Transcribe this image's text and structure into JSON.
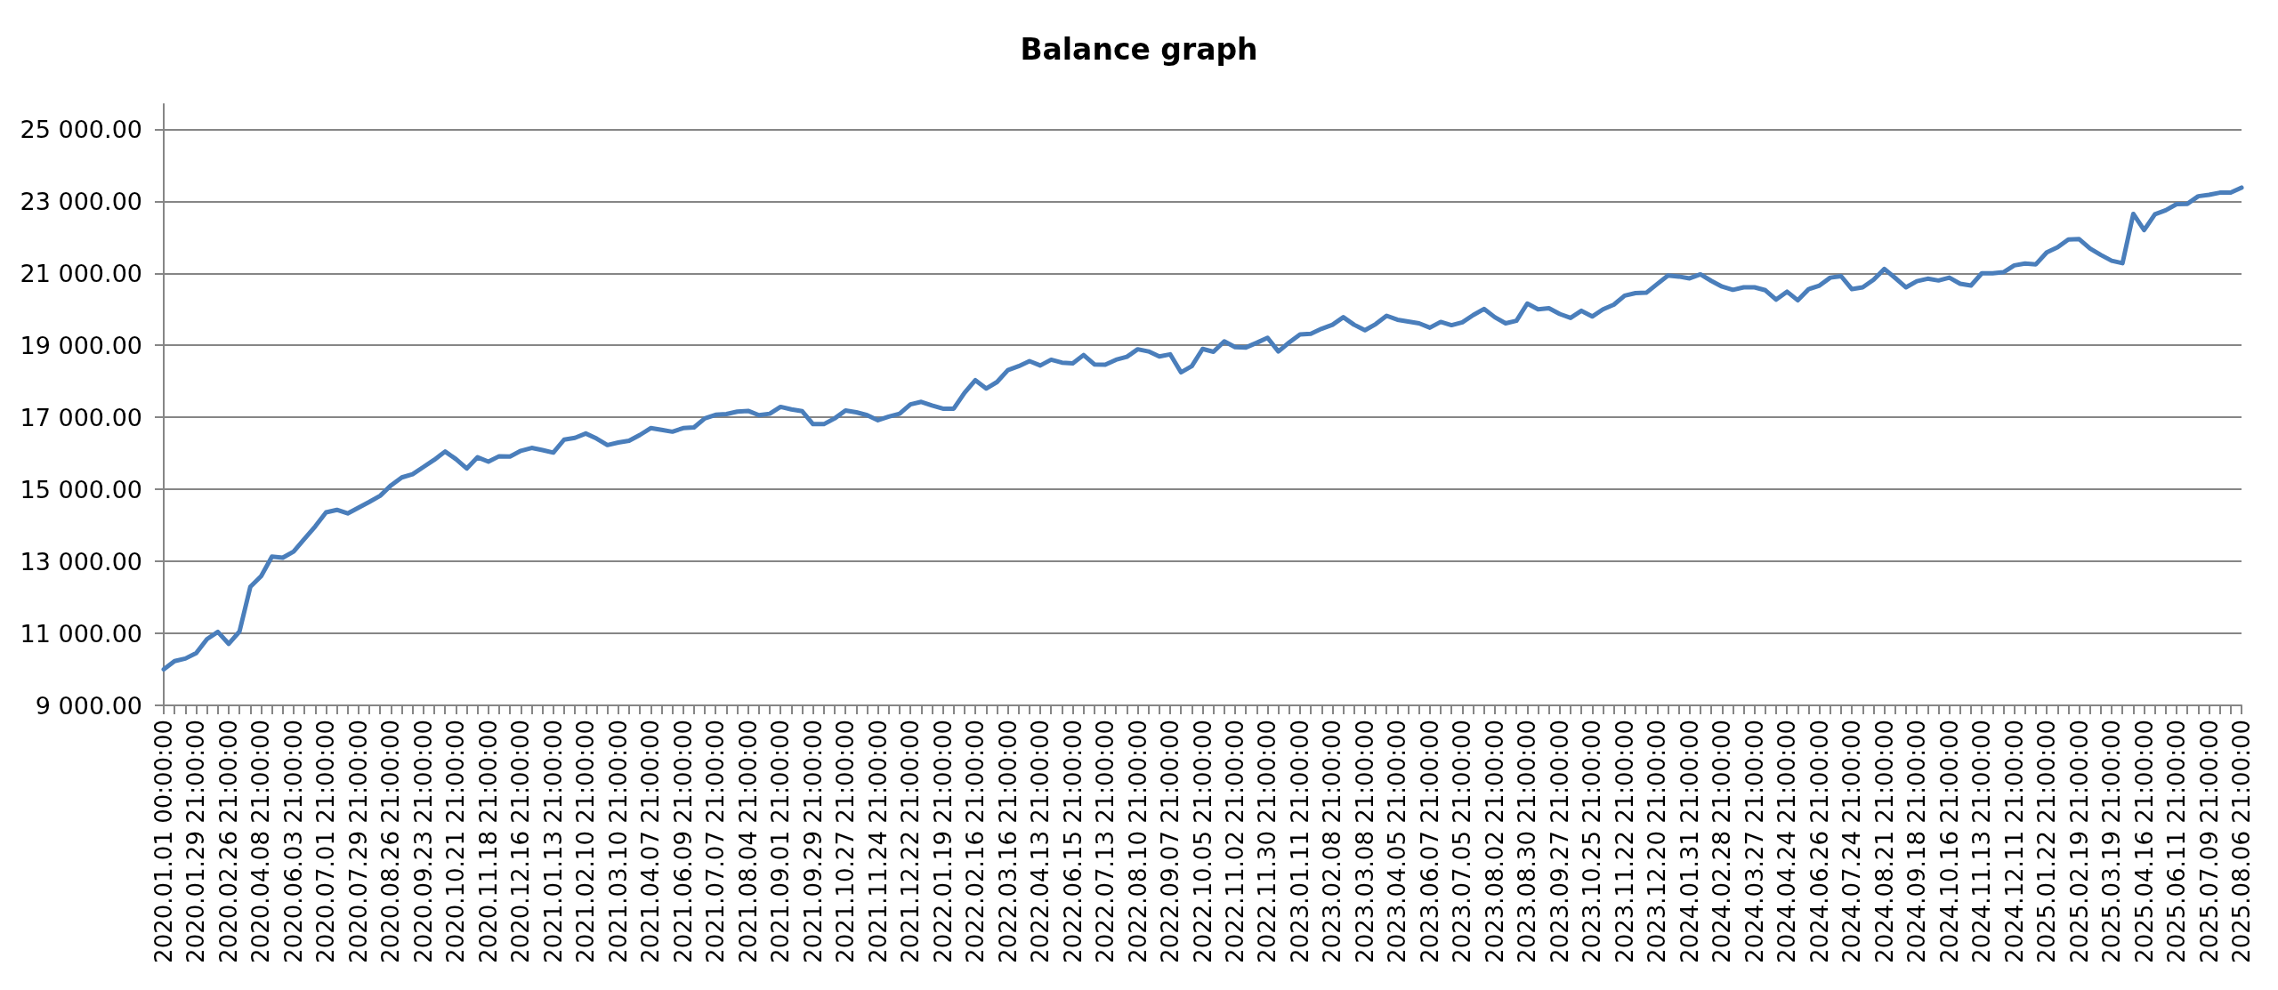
{
  "chart_data": {
    "type": "line",
    "title": "Balance graph",
    "categories": [
      "2020.01.01 00:00:00",
      null,
      null,
      "2020.01.29 21:00:00",
      null,
      null,
      "2020.02.26 21:00:00",
      null,
      null,
      "2020.04.08 21:00:00",
      null,
      null,
      "2020.06.03 21:00:00",
      null,
      null,
      "2020.07.01 21:00:00",
      null,
      null,
      "2020.07.29 21:00:00",
      null,
      null,
      "2020.08.26 21:00:00",
      null,
      null,
      "2020.09.23 21:00:00",
      null,
      null,
      "2020.10.21 21:00:00",
      null,
      null,
      "2020.11.18 21:00:00",
      null,
      null,
      "2020.12.16 21:00:00",
      null,
      null,
      "2021.01.13 21:00:00",
      null,
      null,
      "2021.02.10 21:00:00",
      null,
      null,
      "2021.03.10 21:00:00",
      null,
      null,
      "2021.04.07 21:00:00",
      null,
      null,
      "2021.06.09 21:00:00",
      null,
      null,
      "2021.07.07 21:00:00",
      null,
      null,
      "2021.08.04 21:00:00",
      null,
      null,
      "2021.09.01 21:00:00",
      null,
      null,
      "2021.09.29 21:00:00",
      null,
      null,
      "2021.10.27 21:00:00",
      null,
      null,
      "2021.11.24 21:00:00",
      null,
      null,
      "2021.12.22 21:00:00",
      null,
      null,
      "2022.01.19 21:00:00",
      null,
      null,
      "2022.02.16 21:00:00",
      null,
      null,
      "2022.03.16 21:00:00",
      null,
      null,
      "2022.04.13 21:00:00",
      null,
      null,
      "2022.06.15 21:00:00",
      null,
      null,
      "2022.07.13 21:00:00",
      null,
      null,
      "2022.08.10 21:00:00",
      null,
      null,
      "2022.09.07 21:00:00",
      null,
      null,
      "2022.10.05 21:00:00",
      null,
      null,
      "2022.11.02 21:00:00",
      null,
      null,
      "2022.11.30 21:00:00",
      null,
      null,
      "2023.01.11 21:00:00",
      null,
      null,
      "2023.02.08 21:00:00",
      null,
      null,
      "2023.03.08 21:00:00",
      null,
      null,
      "2023.04.05 21:00:00",
      null,
      null,
      "2023.06.07 21:00:00",
      null,
      null,
      "2023.07.05 21:00:00",
      null,
      null,
      "2023.08.02 21:00:00",
      null,
      null,
      "2023.08.30 21:00:00",
      null,
      null,
      "2023.09.27 21:00:00",
      null,
      null,
      "2023.10.25 21:00:00",
      null,
      null,
      "2023.11.22 21:00:00",
      null,
      null,
      "2023.12.20 21:00:00",
      null,
      null,
      "2024.01.31 21:00:00",
      null,
      null,
      "2024.02.28 21:00:00",
      null,
      null,
      "2024.03.27 21:00:00",
      null,
      null,
      "2024.04.24 21:00:00",
      null,
      null,
      "2024.06.26 21:00:00",
      null,
      null,
      "2024.07.24 21:00:00",
      null,
      null,
      "2024.08.21 21:00:00",
      null,
      null,
      "2024.09.18 21:00:00",
      null,
      null,
      "2024.10.16 21:00:00",
      null,
      null,
      "2024.11.13 21:00:00",
      null,
      null,
      "2024.12.11 21:00:00",
      null,
      null,
      "2025.01.22 21:00:00",
      null,
      null,
      "2025.02.19 21:00:00",
      null,
      null,
      "2025.03.19 21:00:00",
      null,
      null,
      "2025.04.16 21:00:00",
      null,
      null,
      "2025.06.11 21:00:00",
      null,
      null,
      "2025.07.09 21:00:00",
      null,
      null,
      "2025.08.06 21:00:00"
    ],
    "series": [
      {
        "color": "#4a7ebb",
        "values": [
          10000,
          10230,
          10300,
          10450,
          10840,
          11040,
          10710,
          11050,
          12290,
          12590,
          13130,
          13100,
          13270,
          13620,
          13970,
          14360,
          14430,
          14330,
          14490,
          14650,
          14820,
          15110,
          15330,
          15420,
          15620,
          15820,
          16050,
          15840,
          15580,
          15890,
          15770,
          15920,
          15910,
          16070,
          16150,
          16090,
          16020,
          16380,
          16430,
          16550,
          16410,
          16230,
          16300,
          16350,
          16510,
          16700,
          16650,
          16600,
          16700,
          16720,
          16970,
          17070,
          17090,
          17160,
          17180,
          17060,
          17100,
          17290,
          17220,
          17170,
          16810,
          16810,
          16970,
          17190,
          17140,
          17060,
          16920,
          17020,
          17100,
          17360,
          17430,
          17330,
          17240,
          17240,
          17680,
          18030,
          17800,
          17980,
          18310,
          18420,
          18560,
          18440,
          18600,
          18520,
          18500,
          18730,
          18470,
          18460,
          18600,
          18680,
          18890,
          18830,
          18690,
          18750,
          18250,
          18420,
          18900,
          18820,
          19110,
          18950,
          18940,
          19070,
          19210,
          18830,
          19080,
          19300,
          19320,
          19460,
          19570,
          19780,
          19570,
          19420,
          19590,
          19820,
          19710,
          19660,
          19610,
          19490,
          19650,
          19560,
          19640,
          19840,
          20010,
          19780,
          19610,
          19680,
          20160,
          20000,
          20030,
          19870,
          19760,
          19960,
          19800,
          20000,
          20130,
          20380,
          20450,
          20460,
          20700,
          20940,
          20910,
          20860,
          20970,
          20790,
          20630,
          20540,
          20610,
          20610,
          20530,
          20270,
          20490,
          20250,
          20560,
          20660,
          20880,
          20920,
          20560,
          20610,
          20820,
          21120,
          20870,
          20610,
          20780,
          20850,
          20800,
          20880,
          20710,
          20660,
          21000,
          21000,
          21030,
          21220,
          21270,
          21250,
          21580,
          21720,
          21940,
          21950,
          21690,
          21510,
          21350,
          21280,
          22650,
          22200,
          22640,
          22750,
          22920,
          22930,
          23140,
          23180,
          23240,
          23240,
          23380
        ]
      }
    ],
    "ylim": [
      9000,
      25700
    ],
    "yticks": [
      {
        "value": 9000,
        "label": "9 000.00"
      },
      {
        "value": 11000,
        "label": "11 000.00"
      },
      {
        "value": 13000,
        "label": "13 000.00"
      },
      {
        "value": 15000,
        "label": "15 000.00"
      },
      {
        "value": 17000,
        "label": "17 000.00"
      },
      {
        "value": 19000,
        "label": "19 000.00"
      },
      {
        "value": 21000,
        "label": "21 000.00"
      },
      {
        "value": 23000,
        "label": "23 000.00"
      },
      {
        "value": 25000,
        "label": "25 000.00"
      }
    ],
    "grid": "y",
    "marker": "none",
    "line_style": "solid"
  }
}
